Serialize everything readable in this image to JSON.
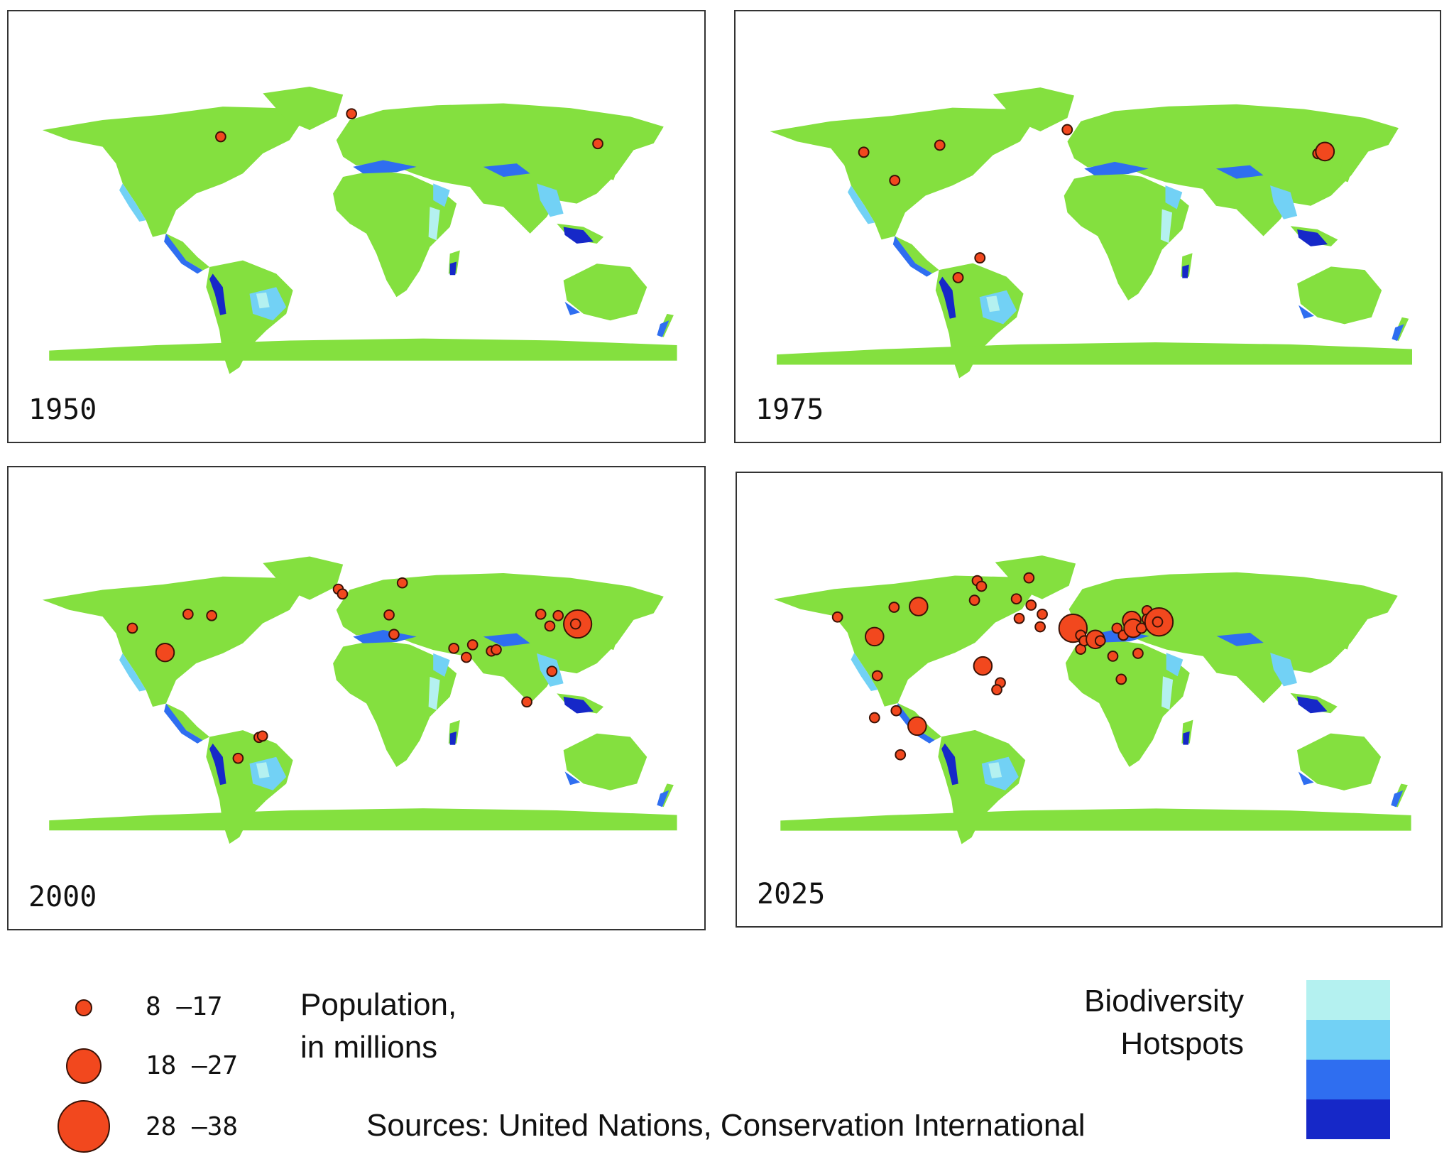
{
  "panels": [
    {
      "year": "1950"
    },
    {
      "year": "1975"
    },
    {
      "year": "2000"
    },
    {
      "year": "2025"
    }
  ],
  "legend": {
    "population_title_line1": "Population,",
    "population_title_line2": "in millions",
    "size_classes": [
      "8 –17",
      "18 –27",
      "28 –38"
    ],
    "hotspots_title_line1": "Biodiversity",
    "hotspots_title_line2": "Hotspots",
    "hotspot_colors": [
      "#b4f1f0",
      "#72d1f5",
      "#2f6ef0",
      "#1628c8"
    ],
    "source": "Sources: United Nations, Conservation International"
  },
  "colors": {
    "land": "#84e03f",
    "city": "#f2481e"
  }
}
